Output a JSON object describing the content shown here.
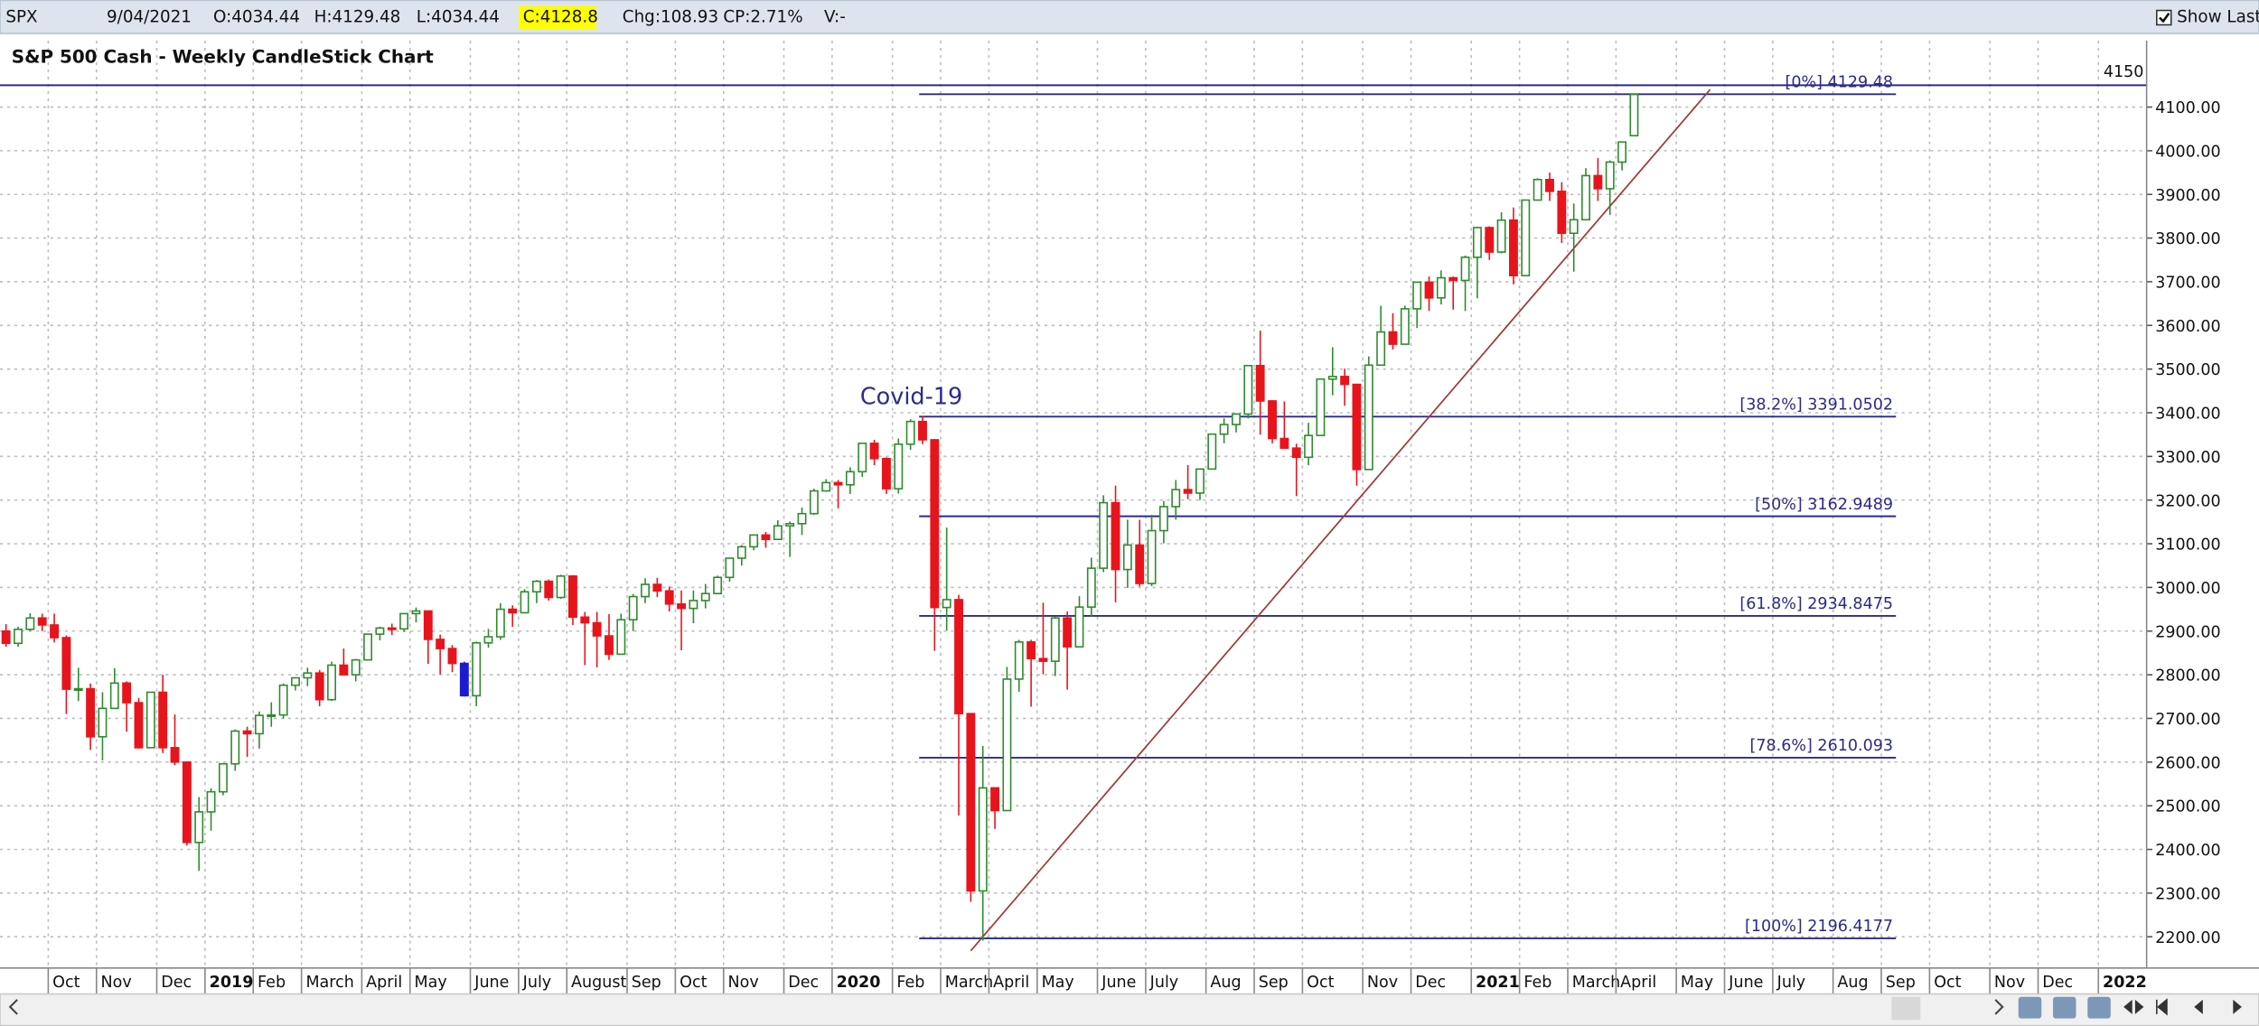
{
  "header": {
    "symbol": "SPX",
    "date": "9/04/2021",
    "open": "O:4034.44",
    "high": "H:4129.48",
    "low": "L:4034.44",
    "close": "C:4128.8",
    "change": "Chg:108.93",
    "change_pct": "CP:2.71%",
    "volume": "V:-",
    "show_last": "Show Last"
  },
  "chart_data": {
    "type": "candlestick",
    "title": "S&P 500 Cash - Weekly CandleStick Chart",
    "annotation": "Covid-19",
    "up_color": "#2e8b2e",
    "down_color": "#e8141c",
    "selected_index": 38,
    "selected_color": "#1b1bd0",
    "line_color": "#2b2b8a",
    "trend_color": "#a33a3a",
    "grid": true,
    "ylim": [
      2135,
      4252
    ],
    "yticks": [
      {
        "value": 2200,
        "label": "2200.00"
      },
      {
        "value": 2300,
        "label": "2300.00"
      },
      {
        "value": 2400,
        "label": "2400.00"
      },
      {
        "value": 2500,
        "label": "2500.00"
      },
      {
        "value": 2600,
        "label": "2600.00"
      },
      {
        "value": 2700,
        "label": "2700.00"
      },
      {
        "value": 2800,
        "label": "2800.00"
      },
      {
        "value": 2900,
        "label": "2900.00"
      },
      {
        "value": 3000,
        "label": "3000.00"
      },
      {
        "value": 3100,
        "label": "3100.00"
      },
      {
        "value": 3200,
        "label": "3200.00"
      },
      {
        "value": 3300,
        "label": "3300.00"
      },
      {
        "value": 3400,
        "label": "3400.00"
      },
      {
        "value": 3500,
        "label": "3500.00"
      },
      {
        "value": 3600,
        "label": "3600.00"
      },
      {
        "value": 3700,
        "label": "3700.00"
      },
      {
        "value": 3800,
        "label": "3800.00"
      },
      {
        "value": 3900,
        "label": "3900.00"
      },
      {
        "value": 4000,
        "label": "4000.00"
      },
      {
        "value": 4100,
        "label": "4100.00"
      }
    ],
    "hline": 4150,
    "fib": [
      {
        "value": 4129.48,
        "label": "[0%] 4129.48"
      },
      {
        "value": 3391.0502,
        "label": "[38.2%] 3391.0502"
      },
      {
        "value": 3162.9489,
        "label": "[50%] 3162.9489"
      },
      {
        "value": 2934.8475,
        "label": "[61.8%] 2934.8475"
      },
      {
        "value": 2610.093,
        "label": "[78.6%] 2610.093"
      },
      {
        "value": 2196.4177,
        "label": "[100%] 2196.4177"
      }
    ],
    "trendline": {
      "x": [
        80,
        141.3
      ],
      "y": [
        2168,
        4140
      ]
    },
    "categories": [
      null,
      null,
      null,
      null,
      "Oct",
      null,
      null,
      null,
      "Nov",
      null,
      null,
      null,
      null,
      "Dec",
      null,
      null,
      null,
      "2019",
      null,
      null,
      null,
      "Feb",
      null,
      null,
      null,
      "March",
      null,
      null,
      null,
      null,
      "April",
      null,
      null,
      null,
      "May",
      null,
      null,
      null,
      null,
      "June",
      null,
      null,
      null,
      "July",
      null,
      null,
      null,
      "August",
      null,
      null,
      null,
      null,
      "Sep",
      null,
      null,
      null,
      "Oct",
      null,
      null,
      null,
      "Nov",
      null,
      null,
      null,
      null,
      "Dec",
      null,
      null,
      null,
      "2020",
      null,
      null,
      null,
      null,
      "Feb",
      null,
      null,
      null,
      "March",
      null,
      null,
      null,
      "April",
      null,
      null,
      null,
      "May",
      null,
      null,
      null,
      null,
      "June",
      null,
      null,
      null,
      "July",
      null,
      null,
      null,
      null,
      "Aug",
      null,
      null,
      null,
      "Sep",
      null,
      null,
      null,
      "Oct",
      null,
      null,
      null,
      null,
      "Nov",
      null,
      null,
      null,
      "Dec",
      null,
      null,
      null,
      null,
      "2021",
      null,
      null,
      null,
      "Feb",
      null,
      null,
      null,
      "March",
      null,
      null,
      null,
      "April",
      null,
      null,
      null,
      null,
      "May",
      null,
      null,
      null,
      "June",
      null,
      null,
      null,
      "July",
      null,
      null,
      null,
      null,
      "Aug",
      null,
      null,
      null,
      "Sep",
      null,
      null,
      null,
      "Oct",
      null,
      null,
      null,
      null,
      "Nov",
      null,
      null,
      null,
      "Dec",
      null,
      null,
      null,
      null,
      "2022",
      null,
      null,
      null
    ],
    "ohlc": [
      [
        2900,
        2916,
        2864,
        2872
      ],
      [
        2872,
        2910,
        2864,
        2904
      ],
      [
        2904,
        2941,
        2900,
        2930
      ],
      [
        2930,
        2940,
        2900,
        2914
      ],
      [
        2914,
        2940,
        2874,
        2885
      ],
      [
        2885,
        2890,
        2710,
        2767
      ],
      [
        2767,
        2816,
        2740,
        2768
      ],
      [
        2768,
        2780,
        2628,
        2658
      ],
      [
        2658,
        2760,
        2604,
        2723
      ],
      [
        2723,
        2815,
        2722,
        2781
      ],
      [
        2781,
        2785,
        2670,
        2736
      ],
      [
        2736,
        2747,
        2631,
        2633
      ],
      [
        2633,
        2760,
        2632,
        2760
      ],
      [
        2760,
        2800,
        2621,
        2633
      ],
      [
        2633,
        2709,
        2593,
        2600
      ],
      [
        2600,
        2601,
        2409,
        2416
      ],
      [
        2416,
        2520,
        2351,
        2486
      ],
      [
        2486,
        2540,
        2443,
        2532
      ],
      [
        2532,
        2598,
        2524,
        2596
      ],
      [
        2596,
        2675,
        2580,
        2671
      ],
      [
        2671,
        2681,
        2612,
        2665
      ],
      [
        2665,
        2716,
        2631,
        2707
      ],
      [
        2707,
        2737,
        2681,
        2708
      ],
      [
        2708,
        2780,
        2700,
        2776
      ],
      [
        2776,
        2794,
        2764,
        2793
      ],
      [
        2793,
        2816,
        2774,
        2804
      ],
      [
        2804,
        2811,
        2728,
        2743
      ],
      [
        2743,
        2830,
        2740,
        2822
      ],
      [
        2822,
        2860,
        2800,
        2800
      ],
      [
        2800,
        2836,
        2785,
        2834
      ],
      [
        2834,
        2893,
        2834,
        2893
      ],
      [
        2893,
        2910,
        2879,
        2907
      ],
      [
        2907,
        2917,
        2891,
        2905
      ],
      [
        2905,
        2940,
        2898,
        2940
      ],
      [
        2940,
        2954,
        2920,
        2946
      ],
      [
        2946,
        2946,
        2825,
        2881
      ],
      [
        2881,
        2892,
        2801,
        2860
      ],
      [
        2860,
        2868,
        2806,
        2826
      ],
      [
        2826,
        2830,
        2750,
        2752
      ],
      [
        2752,
        2876,
        2728,
        2873
      ],
      [
        2873,
        2905,
        2862,
        2887
      ],
      [
        2887,
        2964,
        2880,
        2950
      ],
      [
        2950,
        2959,
        2910,
        2942
      ],
      [
        2942,
        2996,
        2940,
        2990
      ],
      [
        2990,
        3017,
        2964,
        3014
      ],
      [
        3014,
        3018,
        2970,
        2977
      ],
      [
        2977,
        3029,
        2974,
        3026
      ],
      [
        3026,
        3028,
        2914,
        2932
      ],
      [
        2932,
        2944,
        2822,
        2919
      ],
      [
        2919,
        2944,
        2817,
        2889
      ],
      [
        2889,
        2939,
        2834,
        2847
      ],
      [
        2847,
        2940,
        2855,
        2926
      ],
      [
        2926,
        2985,
        2900,
        2979
      ],
      [
        2979,
        3021,
        2964,
        3007
      ],
      [
        3007,
        3022,
        2978,
        2992
      ],
      [
        2992,
        3002,
        2945,
        2962
      ],
      [
        2962,
        2993,
        2856,
        2952
      ],
      [
        2952,
        2993,
        2918,
        2970
      ],
      [
        2970,
        3008,
        2952,
        2986
      ],
      [
        2986,
        3027,
        2991,
        3023
      ],
      [
        3023,
        3067,
        3013,
        3067
      ],
      [
        3067,
        3097,
        3050,
        3093
      ],
      [
        3093,
        3121,
        3085,
        3120
      ],
      [
        3120,
        3127,
        3091,
        3110
      ],
      [
        3110,
        3154,
        3112,
        3141
      ],
      [
        3141,
        3151,
        3070,
        3146
      ],
      [
        3146,
        3183,
        3120,
        3169
      ],
      [
        3169,
        3226,
        3166,
        3221
      ],
      [
        3221,
        3248,
        3219,
        3240
      ],
      [
        3240,
        3246,
        3181,
        3235
      ],
      [
        3235,
        3275,
        3214,
        3265
      ],
      [
        3265,
        3330,
        3253,
        3330
      ],
      [
        3330,
        3338,
        3280,
        3295
      ],
      [
        3295,
        3298,
        3214,
        3226
      ],
      [
        3226,
        3341,
        3215,
        3328
      ],
      [
        3328,
        3385,
        3315,
        3380
      ],
      [
        3380,
        3393,
        3328,
        3338
      ],
      [
        3338,
        3340,
        2855,
        2954
      ],
      [
        2954,
        3137,
        2901,
        2972
      ],
      [
        2972,
        2983,
        2478,
        2711
      ],
      [
        2711,
        2711,
        2280,
        2305
      ],
      [
        2305,
        2637,
        2191,
        2541
      ],
      [
        2541,
        2542,
        2447,
        2489
      ],
      [
        2489,
        2818,
        2489,
        2790
      ],
      [
        2790,
        2880,
        2761,
        2875
      ],
      [
        2875,
        2880,
        2727,
        2837
      ],
      [
        2837,
        2965,
        2801,
        2831
      ],
      [
        2831,
        2934,
        2797,
        2930
      ],
      [
        2930,
        2945,
        2766,
        2864
      ],
      [
        2864,
        2980,
        2865,
        2955
      ],
      [
        2955,
        3068,
        2933,
        3044
      ],
      [
        3044,
        3211,
        3035,
        3194
      ],
      [
        3194,
        3233,
        2966,
        3041
      ],
      [
        3041,
        3155,
        2999,
        3097
      ],
      [
        3097,
        3155,
        3002,
        3009
      ],
      [
        3009,
        3166,
        3003,
        3130
      ],
      [
        3130,
        3198,
        3101,
        3185
      ],
      [
        3185,
        3246,
        3155,
        3224
      ],
      [
        3224,
        3280,
        3202,
        3216
      ],
      [
        3216,
        3272,
        3200,
        3271
      ],
      [
        3271,
        3352,
        3270,
        3351
      ],
      [
        3351,
        3387,
        3330,
        3373
      ],
      [
        3373,
        3399,
        3355,
        3397
      ],
      [
        3397,
        3509,
        3387,
        3508
      ],
      [
        3508,
        3588,
        3350,
        3427
      ],
      [
        3427,
        3429,
        3330,
        3341
      ],
      [
        3341,
        3426,
        3320,
        3319
      ],
      [
        3319,
        3329,
        3209,
        3298
      ],
      [
        3298,
        3377,
        3280,
        3348
      ],
      [
        3348,
        3477,
        3350,
        3477
      ],
      [
        3477,
        3550,
        3440,
        3483
      ],
      [
        3483,
        3501,
        3416,
        3465
      ],
      [
        3465,
        3465,
        3233,
        3270
      ],
      [
        3270,
        3529,
        3280,
        3509
      ],
      [
        3509,
        3645,
        3511,
        3585
      ],
      [
        3585,
        3628,
        3545,
        3557
      ],
      [
        3557,
        3645,
        3557,
        3638
      ],
      [
        3638,
        3699,
        3594,
        3699
      ],
      [
        3699,
        3712,
        3633,
        3663
      ],
      [
        3663,
        3726,
        3648,
        3709
      ],
      [
        3709,
        3712,
        3636,
        3703
      ],
      [
        3703,
        3760,
        3633,
        3756
      ],
      [
        3756,
        3826,
        3662,
        3824
      ],
      [
        3824,
        3827,
        3750,
        3768
      ],
      [
        3768,
        3859,
        3765,
        3841
      ],
      [
        3841,
        3870,
        3694,
        3714
      ],
      [
        3714,
        3887,
        3725,
        3887
      ],
      [
        3887,
        3937,
        3886,
        3934
      ],
      [
        3934,
        3950,
        3885,
        3907
      ],
      [
        3907,
        3928,
        3789,
        3811
      ],
      [
        3811,
        3879,
        3723,
        3842
      ],
      [
        3842,
        3960,
        3843,
        3943
      ],
      [
        3943,
        3983,
        3885,
        3913
      ],
      [
        3913,
        3978,
        3853,
        3974
      ],
      [
        3974,
        4020,
        3955,
        4020
      ],
      [
        4034.44,
        4129.48,
        4034.44,
        4128.8
      ],
      null,
      null,
      null,
      null,
      null,
      null,
      null,
      null,
      null,
      null,
      null,
      null,
      null,
      null,
      null,
      null,
      null,
      null,
      null,
      null,
      null,
      null,
      null,
      null,
      null,
      null,
      null,
      null,
      null,
      null,
      null,
      null,
      null,
      null,
      null,
      null,
      null,
      null,
      null,
      null,
      null,
      null
    ]
  }
}
